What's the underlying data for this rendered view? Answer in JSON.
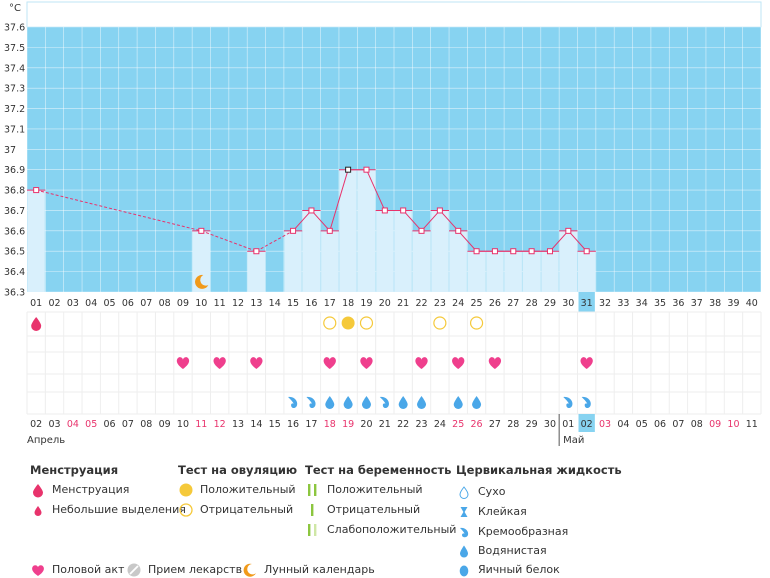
{
  "chart_data": {
    "type": "line",
    "unit": "°C",
    "ylim": [
      36.3,
      37.6
    ],
    "y_ticks": [
      "37.6",
      "37.5",
      "37.4",
      "37.3",
      "37.2",
      "37.1",
      "37",
      "36.9",
      "36.8",
      "36.7",
      "36.6",
      "36.5",
      "36.4",
      "36.3"
    ],
    "cycle_days": [
      "01",
      "02",
      "03",
      "04",
      "05",
      "06",
      "07",
      "08",
      "09",
      "10",
      "11",
      "12",
      "13",
      "14",
      "15",
      "16",
      "17",
      "18",
      "19",
      "20",
      "21",
      "22",
      "23",
      "24",
      "25",
      "26",
      "27",
      "28",
      "29",
      "30",
      "31",
      "32",
      "33",
      "34",
      "35",
      "36",
      "37",
      "38",
      "39",
      "40"
    ],
    "temperature": [
      {
        "day": 1,
        "value": 36.8
      },
      {
        "day": 10,
        "value": 36.6
      },
      {
        "day": 13,
        "value": 36.5
      },
      {
        "day": 15,
        "value": 36.6
      },
      {
        "day": 16,
        "value": 36.7
      },
      {
        "day": 17,
        "value": 36.6
      },
      {
        "day": 18,
        "value": 36.9
      },
      {
        "day": 19,
        "value": 36.9
      },
      {
        "day": 20,
        "value": 36.7
      },
      {
        "day": 21,
        "value": 36.7
      },
      {
        "day": 22,
        "value": 36.6
      },
      {
        "day": 23,
        "value": 36.7
      },
      {
        "day": 24,
        "value": 36.6
      },
      {
        "day": 25,
        "value": 36.5
      },
      {
        "day": 26,
        "value": 36.5
      },
      {
        "day": 27,
        "value": 36.5
      },
      {
        "day": 28,
        "value": 36.5
      },
      {
        "day": 29,
        "value": 36.5
      },
      {
        "day": 30,
        "value": 36.6
      },
      {
        "day": 31,
        "value": 36.5
      }
    ],
    "highlighted_day": "31",
    "moon_day": 10,
    "menstruation_days": [
      1
    ],
    "ovulation_tests": [
      {
        "day": 17,
        "result": "negative"
      },
      {
        "day": 18,
        "result": "positive"
      },
      {
        "day": 19,
        "result": "negative"
      },
      {
        "day": 23,
        "result": "negative"
      },
      {
        "day": 25,
        "result": "negative"
      }
    ],
    "intercourse_days": [
      9,
      11,
      13,
      17,
      19,
      22,
      24,
      26,
      31
    ],
    "cervical_fluid": [
      {
        "day": 15,
        "type": "creamy"
      },
      {
        "day": 16,
        "type": "creamy"
      },
      {
        "day": 17,
        "type": "watery"
      },
      {
        "day": 18,
        "type": "watery"
      },
      {
        "day": 19,
        "type": "watery"
      },
      {
        "day": 20,
        "type": "creamy"
      },
      {
        "day": 21,
        "type": "watery"
      },
      {
        "day": 22,
        "type": "watery"
      },
      {
        "day": 24,
        "type": "watery"
      },
      {
        "day": 25,
        "type": "watery"
      },
      {
        "day": 30,
        "type": "creamy"
      },
      {
        "day": 31,
        "type": "creamy"
      }
    ],
    "dates": [
      {
        "t": "02",
        "red": false
      },
      {
        "t": "03",
        "red": false
      },
      {
        "t": "04",
        "red": true
      },
      {
        "t": "05",
        "red": true
      },
      {
        "t": "06",
        "red": false
      },
      {
        "t": "07",
        "red": false
      },
      {
        "t": "08",
        "red": false
      },
      {
        "t": "09",
        "red": false
      },
      {
        "t": "10",
        "red": false
      },
      {
        "t": "11",
        "red": true
      },
      {
        "t": "12",
        "red": true
      },
      {
        "t": "13",
        "red": false
      },
      {
        "t": "14",
        "red": false
      },
      {
        "t": "15",
        "red": false
      },
      {
        "t": "16",
        "red": false
      },
      {
        "t": "17",
        "red": false
      },
      {
        "t": "18",
        "red": true
      },
      {
        "t": "19",
        "red": true
      },
      {
        "t": "20",
        "red": false
      },
      {
        "t": "21",
        "red": false
      },
      {
        "t": "22",
        "red": false
      },
      {
        "t": "23",
        "red": false
      },
      {
        "t": "24",
        "red": false
      },
      {
        "t": "25",
        "red": true
      },
      {
        "t": "26",
        "red": true
      },
      {
        "t": "27",
        "red": false
      },
      {
        "t": "28",
        "red": false
      },
      {
        "t": "29",
        "red": false
      },
      {
        "t": "30",
        "red": false
      },
      {
        "t": "01",
        "red": false
      },
      {
        "t": "02",
        "red": false
      },
      {
        "t": "03",
        "red": true
      },
      {
        "t": "04",
        "red": false
      },
      {
        "t": "05",
        "red": false
      },
      {
        "t": "06",
        "red": false
      },
      {
        "t": "07",
        "red": false
      },
      {
        "t": "08",
        "red": false
      },
      {
        "t": "09",
        "red": true
      },
      {
        "t": "10",
        "red": true
      },
      {
        "t": "11",
        "red": false
      }
    ],
    "months": [
      {
        "label": "Апрель",
        "start_day": 1
      },
      {
        "label": "Май",
        "start_day": 30
      }
    ]
  },
  "colors": {
    "plot_bg": "#87d3f1",
    "column": "#d9f0fc",
    "line": "#e8336c",
    "grid": "#ffffff",
    "highlight": "#87d3f1",
    "red_date": "#e8336c",
    "heart": "#ef3f8d",
    "drop": "#4aa7e8",
    "ovulation_yellow": "#f5c93a",
    "pregnancy_green": "#8cc63f",
    "moon": "#f19a1a"
  },
  "legend": {
    "menstruation": {
      "title": "Менструация",
      "items": [
        "Менструация",
        "Небольшие выделения"
      ]
    },
    "ovulation": {
      "title": "Тест на овуляцию",
      "items": [
        "Положительный",
        "Отрицательный"
      ]
    },
    "pregnancy": {
      "title": "Тест на беременность",
      "items": [
        "Положительный",
        "Отрицательный",
        "Слабоположительный"
      ]
    },
    "cervical": {
      "title": "Цервикальная жидкость",
      "items": [
        "Сухо",
        "Клейкая",
        "Кремообразная",
        "Водянистая",
        "Яичный белок"
      ]
    },
    "bottom": [
      "Половой акт",
      "Прием лекарств",
      "Лунный календарь"
    ]
  }
}
